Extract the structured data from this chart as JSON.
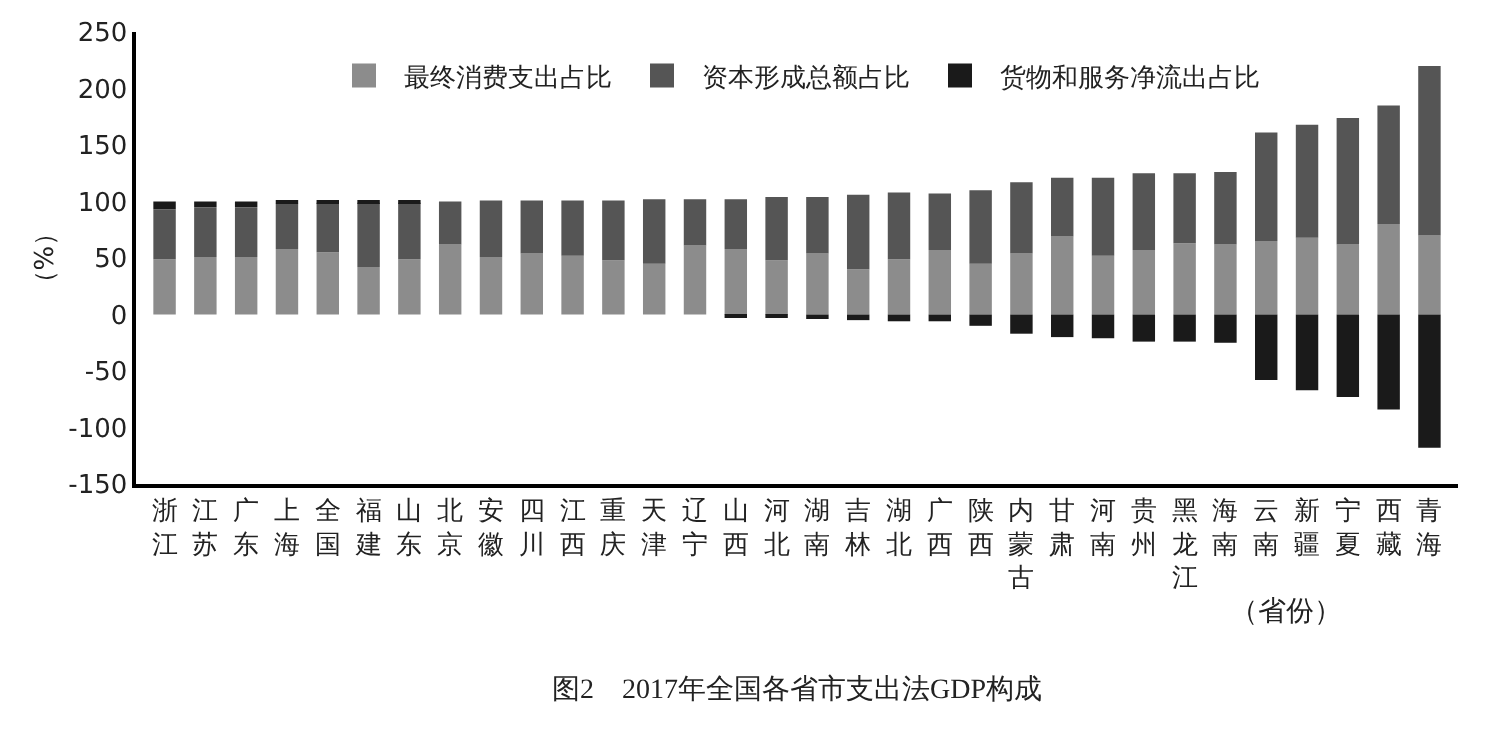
{
  "chart_data": {
    "type": "bar",
    "stacked": true,
    "title": "图2　2017年全国各省市支出法GDP构成",
    "xlabel": "（省份）",
    "ylabel": "（%）",
    "categories": [
      "浙江",
      "江苏",
      "广东",
      "上海",
      "全国",
      "福建",
      "山东",
      "北京",
      "安徽",
      "四川",
      "江西",
      "重庆",
      "天津",
      "辽宁",
      "山西",
      "河北",
      "湖南",
      "吉林",
      "湖北",
      "广西",
      "陕西",
      "内蒙古",
      "甘肃",
      "河南",
      "贵州",
      "黑龙江",
      "海南",
      "云南",
      "新疆",
      "宁夏",
      "西藏",
      "青海"
    ],
    "series": [
      {
        "name": "最终消费支出占比",
        "color": "#8c8c8c",
        "values": [
          49,
          51,
          51,
          58,
          55,
          42,
          49,
          62,
          51,
          54,
          52,
          48,
          45,
          61,
          58,
          48,
          54,
          40,
          49,
          57,
          45,
          54,
          69,
          52,
          57,
          63,
          62,
          65,
          68,
          62,
          80,
          70
        ]
      },
      {
        "name": "资本形成总额占比",
        "color": "#555555",
        "values": [
          44,
          44,
          44,
          40,
          44,
          57,
          50,
          38,
          50,
          47,
          49,
          53,
          57,
          41,
          44,
          56,
          50,
          66,
          59,
          50,
          65,
          63,
          52,
          69,
          68,
          62,
          64,
          96,
          100,
          112,
          105,
          150
        ]
      },
      {
        "name": "货物和服务净流出占比",
        "color": "#1a1a1a",
        "values": [
          7,
          5,
          5,
          2,
          1,
          1,
          1,
          0,
          0,
          0,
          0,
          0,
          0,
          0,
          -2,
          -3,
          -4,
          -5,
          -6,
          -6,
          -10,
          -17,
          -20,
          -21,
          -24,
          -24,
          -25,
          -58,
          -67,
          -73,
          -84,
          -118
        ]
      }
    ],
    "ylim": [
      -150,
      250
    ],
    "yticks": [
      -150,
      -100,
      -50,
      0,
      50,
      100,
      150,
      200,
      250
    ],
    "legend": "top"
  }
}
